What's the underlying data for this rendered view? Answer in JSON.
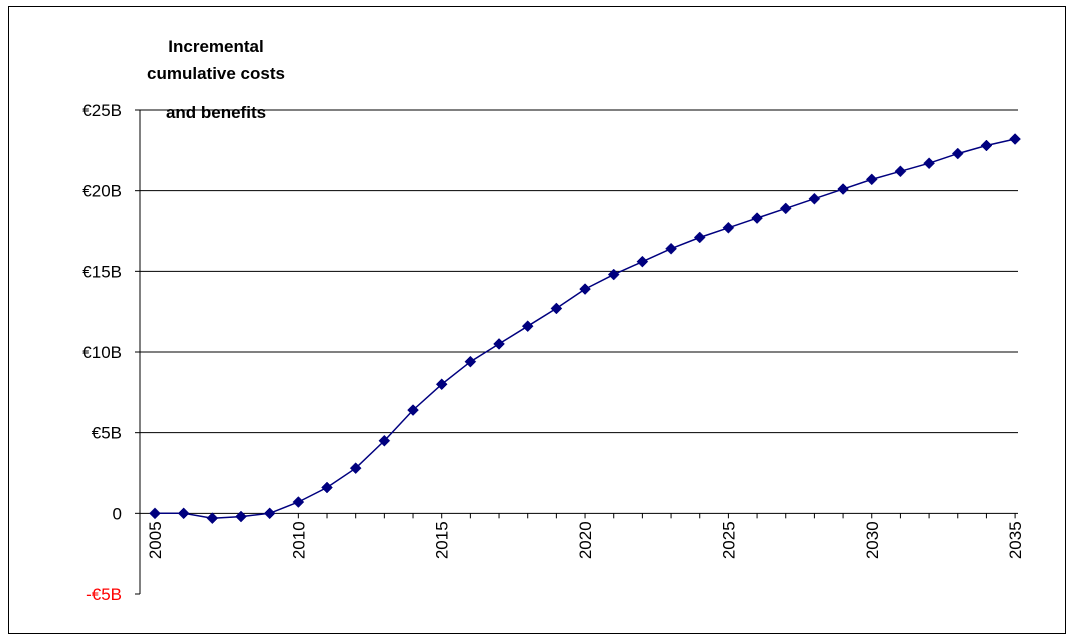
{
  "chart_data": {
    "type": "line",
    "title_lines": [
      "Incremental",
      "cumulative costs",
      "and benefits"
    ],
    "xlabel": "",
    "ylabel": "",
    "x": [
      2005,
      2006,
      2007,
      2008,
      2009,
      2010,
      2011,
      2012,
      2013,
      2014,
      2015,
      2016,
      2017,
      2018,
      2019,
      2020,
      2021,
      2022,
      2023,
      2024,
      2025,
      2026,
      2027,
      2028,
      2029,
      2030,
      2031,
      2032,
      2033,
      2034,
      2035
    ],
    "series": [
      {
        "values": [
          0,
          0,
          -0.3,
          -0.2,
          0,
          0.7,
          1.6,
          2.8,
          4.5,
          6.4,
          8.0,
          9.4,
          10.5,
          11.6,
          12.7,
          13.9,
          14.8,
          15.6,
          16.4,
          17.1,
          17.7,
          18.3,
          18.9,
          19.5,
          20.1,
          20.7,
          21.2,
          21.7,
          22.3,
          22.8,
          23.2
        ],
        "color": "#00007f"
      }
    ],
    "ylim": [
      -5,
      25
    ],
    "y_ticks": [
      {
        "value": 25,
        "label": "€25B"
      },
      {
        "value": 20,
        "label": "€20B"
      },
      {
        "value": 15,
        "label": "€15B"
      },
      {
        "value": 10,
        "label": "€10B"
      },
      {
        "value": 5,
        "label": "€5B"
      },
      {
        "value": 0,
        "label": "0"
      },
      {
        "value": -5,
        "label": "-€5B"
      }
    ],
    "x_tick_labels": [
      "2005",
      "2010",
      "2015",
      "2020",
      "2025",
      "2030",
      "2035"
    ],
    "negative_tick_color": "#ff0000",
    "gridlines": true,
    "legend": "none"
  }
}
